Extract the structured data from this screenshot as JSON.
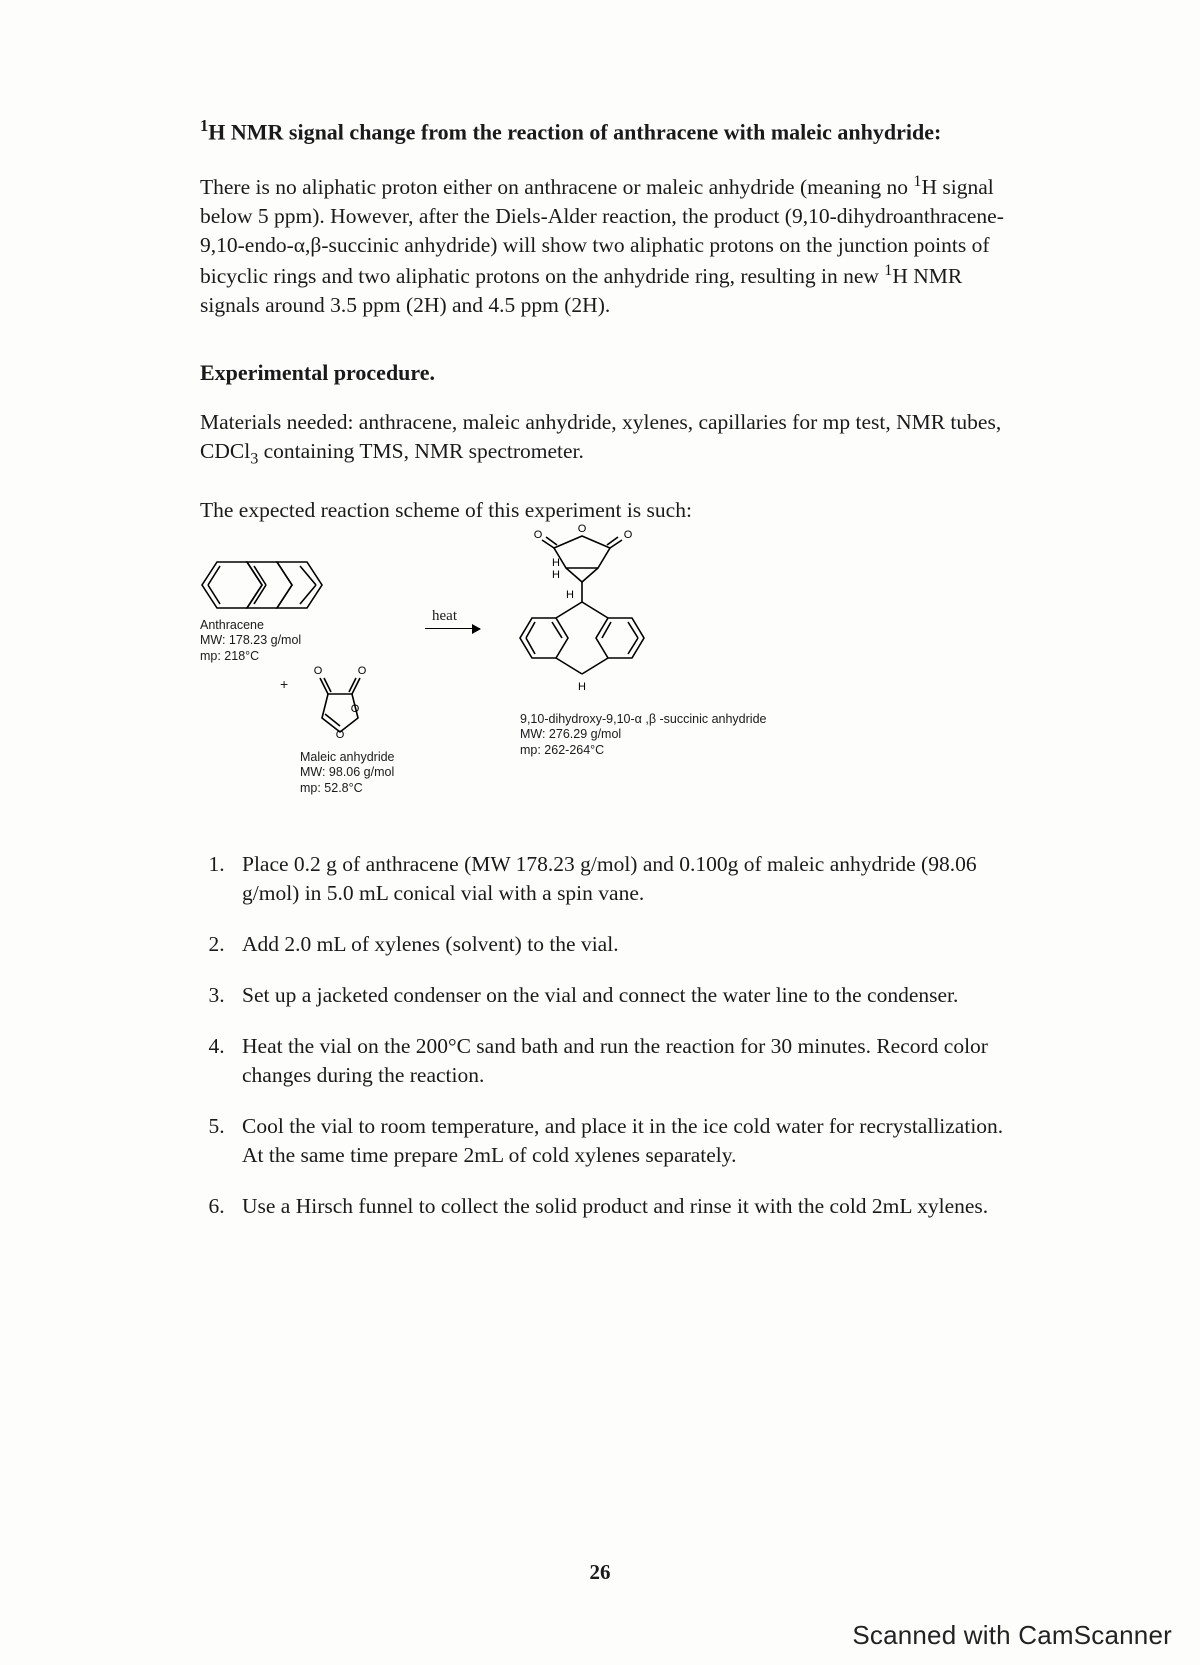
{
  "title_html": "<sup>1</sup>H NMR signal change from the reaction of anthracene with maleic anhydride:",
  "para1_html": "There is no aliphatic proton either on anthracene or maleic anhydride (meaning no <sup>1</sup>H signal below 5 ppm). However, after the Diels-Alder reaction, the product (9,10-dihydroanthracene-9,10-endo-α,β-succinic anhydride) will show two aliphatic protons on the junction points of bicyclic rings and two aliphatic protons on the anhydride ring, resulting in new <sup>1</sup>H NMR signals around 3.5 ppm (2H) and 4.5 ppm (2H).",
  "section_heading": "Experimental procedure.",
  "materials_html": "Materials needed: anthracene, maleic anhydride, xylenes, capillaries for mp test, NMR tubes, CDCl<sub>3</sub> containing TMS, NMR spectrometer.",
  "scheme_intro": "The expected reaction scheme of this experiment is such:",
  "scheme": {
    "anthracene": {
      "name": "Anthracene",
      "mw": "MW: 178.23 g/mol",
      "mp": "mp: 218°C"
    },
    "maleic": {
      "name": "Maleic anhydride",
      "mw": "MW: 98.06 g/mol",
      "mp": "mp: 52.8°C"
    },
    "product": {
      "name": "9,10-dihydroxy-9,10-α ,β -succinic anhydride",
      "mw": "MW: 276.29 g/mol",
      "mp": "mp: 262-264°C"
    },
    "arrow_label": "heat",
    "plus": "+"
  },
  "steps": [
    "Place 0.2 g of anthracene (MW 178.23 g/mol) and 0.100g of maleic anhydride (98.06 g/mol) in 5.0 mL conical vial with a spin vane.",
    "Add 2.0 mL of xylenes (solvent) to the vial.",
    "Set up a jacketed condenser on the vial and connect the water line to the condenser.",
    "Heat the vial on the 200°C sand bath and run the reaction for 30 minutes. Record color changes during the reaction.",
    "Cool the vial to room temperature, and place it in the ice cold water for recrystallization. At the same time prepare 2mL of cold xylenes separately.",
    "Use a Hirsch funnel to collect the solid product and rinse it with the cold 2mL xylenes."
  ],
  "page_number": "26",
  "watermark": "Scanned with CamScanner"
}
